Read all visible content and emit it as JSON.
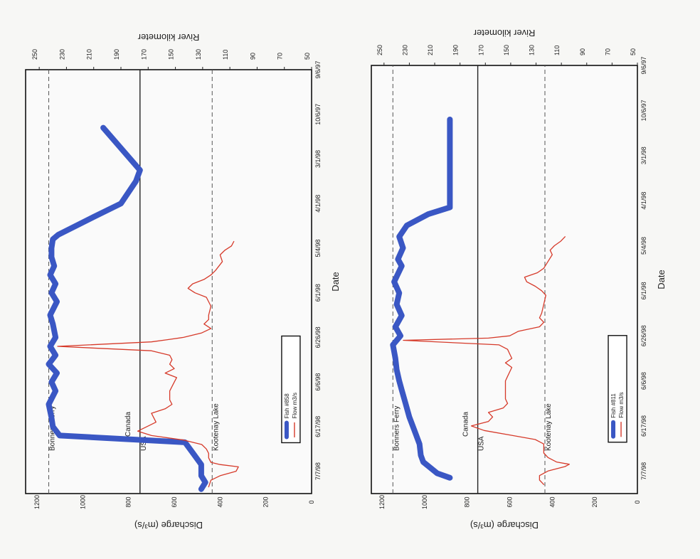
{
  "chart_data": [
    {
      "type": "line",
      "xlabel": "Date",
      "ylabel_left": "River kilometer",
      "ylabel_right": "Discharge (m³/s)",
      "x_ticks": [
        "9/6/97",
        "10/6/97",
        "3/1/98",
        "4/1/98",
        "5/4/98",
        "6/1/98",
        "6/26/98",
        "6/6/98",
        "6/17/98",
        "7/7/98"
      ],
      "y_left_ticks": [
        50,
        70,
        90,
        110,
        130,
        150,
        170,
        190,
        210,
        230,
        250
      ],
      "y_right_ticks": [
        0,
        200,
        400,
        600,
        800,
        1000,
        1200
      ],
      "reference_lines": [
        {
          "label": "Bonners Ferry",
          "value": 243,
          "style": "dashed"
        },
        {
          "label": "USA",
          "value": 176,
          "style": "solid"
        },
        {
          "label": "Canada",
          "value": 176,
          "style": "solid"
        },
        {
          "label": "Kootenay Lake",
          "value": 123,
          "style": "dashed"
        }
      ],
      "legend": [
        "Flow m3/s",
        "Fish #811"
      ],
      "legend_position": "bottom-left",
      "series": [
        {
          "name": "Fish #811",
          "axis": "left",
          "color": "#3a57c4",
          "x": [
            1.2,
            1.85,
            3.15,
            3.3,
            3.55,
            3.8,
            4.05,
            4.3,
            4.45,
            4.8,
            5.05,
            5.3,
            5.55,
            5.8,
            6.0,
            6.2,
            6.5,
            6.75,
            7.0,
            7.2,
            7.5,
            7.8,
            8.1,
            8.4,
            8.65,
            8.8,
            9.05,
            9.15
          ],
          "y": [
            198,
            198,
            198,
            215,
            232,
            238,
            235,
            239,
            236,
            242,
            238,
            240,
            236,
            241,
            237,
            243,
            241,
            240,
            238,
            236,
            233,
            230,
            226,
            222,
            221,
            219,
            208,
            198
          ]
        },
        {
          "name": "Flow m3/s",
          "axis": "right",
          "color": "#d63a2a",
          "x": [
            3.8,
            3.9,
            4.0,
            4.1,
            4.2,
            4.35,
            4.5,
            4.6,
            4.7,
            4.8,
            4.9,
            5.0,
            5.1,
            5.3,
            5.5,
            5.6,
            5.7,
            5.8,
            5.9,
            6.0,
            6.05,
            6.1,
            6.2,
            6.3,
            6.4,
            6.5,
            6.6,
            6.7,
            6.8,
            6.9,
            7.0,
            7.2,
            7.4,
            7.5,
            7.6,
            7.7,
            7.8,
            7.9,
            8.0,
            8.1,
            8.2,
            8.3,
            8.4,
            8.5,
            8.6,
            8.7,
            8.8,
            8.85,
            8.9,
            9.0,
            9.1,
            9.2,
            9.3
          ],
          "y": [
            340,
            360,
            390,
            410,
            400,
            420,
            440,
            470,
            530,
            520,
            480,
            450,
            430,
            440,
            450,
            460,
            440,
            460,
            560,
            600,
            700,
            1100,
            650,
            610,
            600,
            590,
            620,
            590,
            600,
            610,
            620,
            620,
            620,
            610,
            630,
            700,
            680,
            700,
            780,
            720,
            600,
            480,
            440,
            440,
            440,
            420,
            380,
            320,
            340,
            420,
            460,
            460,
            440
          ]
        }
      ]
    },
    {
      "type": "line",
      "xlabel": "Date",
      "ylabel_left": "River kilometer",
      "ylabel_right": "Discharge (m³/s)",
      "x_ticks": [
        "9/6/97",
        "10/6/97",
        "3/1/98",
        "4/1/98",
        "5/4/98",
        "6/1/98",
        "6/26/98",
        "6/6/98",
        "6/17/98",
        "7/7/98"
      ],
      "y_left_ticks": [
        50,
        70,
        90,
        110,
        130,
        150,
        170,
        190,
        210,
        230,
        250
      ],
      "y_right_ticks": [
        0,
        200,
        400,
        600,
        800,
        1000,
        1200
      ],
      "reference_lines": [
        {
          "label": "Bonners Ferry",
          "value": 243,
          "style": "dashed"
        },
        {
          "label": "USA",
          "value": 176,
          "style": "solid"
        },
        {
          "label": "Canada",
          "value": 176,
          "style": "solid"
        },
        {
          "label": "Kootenay Lake",
          "value": 123,
          "style": "dashed"
        }
      ],
      "legend": [
        "Flow m3/s",
        "Fish #858"
      ],
      "legend_position": "bottom-left",
      "series": [
        {
          "name": "Fish #858",
          "axis": "left",
          "color": "#3a57c4",
          "x": [
            1.3,
            2.25,
            2.5,
            3.0,
            3.3,
            3.7,
            3.8,
            4.0,
            4.2,
            4.4,
            4.6,
            4.8,
            5.0,
            5.2,
            5.5,
            5.7,
            6.0,
            6.2,
            6.4,
            6.6,
            6.8,
            7.0,
            7.2,
            7.5,
            7.8,
            8.0,
            8.2,
            8.35,
            8.6,
            8.85,
            9.1,
            9.25,
            9.4
          ],
          "y": [
            203,
            176,
            179,
            190,
            210,
            236,
            240,
            241,
            241,
            239,
            242,
            238,
            241,
            237,
            242,
            240,
            238,
            242,
            238,
            243,
            237,
            241,
            238,
            243,
            241,
            240,
            235,
            143,
            137,
            131,
            131,
            128,
            131
          ]
        },
        {
          "name": "Flow m3/s",
          "axis": "right",
          "color": "#d63a2a",
          "x": [
            3.85,
            3.95,
            4.05,
            4.15,
            4.3,
            4.5,
            4.6,
            4.7,
            4.8,
            4.9,
            5.0,
            5.1,
            5.3,
            5.5,
            5.6,
            5.7,
            5.8,
            5.9,
            6.0,
            6.05,
            6.1,
            6.2,
            6.3,
            6.4,
            6.5,
            6.6,
            6.7,
            6.8,
            6.9,
            7.0,
            7.2,
            7.4,
            7.5,
            7.6,
            7.7,
            7.8,
            7.9,
            8.0,
            8.1,
            8.2,
            8.3,
            8.4,
            8.5,
            8.6,
            8.7,
            8.8,
            8.85,
            8.9,
            9.0,
            9.1,
            9.2,
            9.35
          ],
          "y": [
            340,
            350,
            380,
            400,
            390,
            420,
            440,
            470,
            520,
            540,
            510,
            460,
            440,
            450,
            450,
            470,
            440,
            480,
            560,
            630,
            700,
            1110,
            700,
            620,
            610,
            620,
            600,
            640,
            590,
            600,
            620,
            620,
            610,
            640,
            700,
            690,
            680,
            720,
            760,
            700,
            560,
            480,
            460,
            450,
            450,
            440,
            400,
            320,
            330,
            400,
            440,
            450
          ]
        }
      ]
    }
  ]
}
